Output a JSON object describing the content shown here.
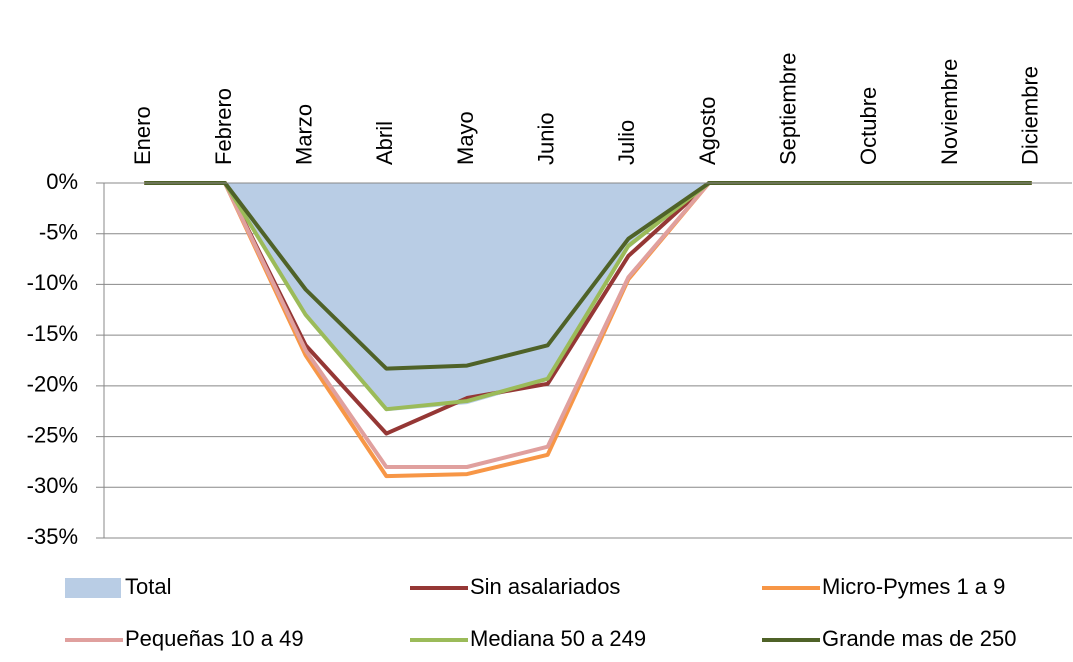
{
  "chart_data": {
    "type": "line",
    "categories": [
      "Enero",
      "Febrero",
      "Marzo",
      "Abril",
      "Mayo",
      "Junio",
      "Julio",
      "Agosto",
      "Septiembre",
      "Octubre",
      "Noviembre",
      "Diciembre"
    ],
    "series": [
      {
        "name": "Total",
        "color": "#b9cde5",
        "kind": "area",
        "values": [
          0,
          0,
          -13,
          -22.5,
          -21.8,
          -19.5,
          -6.5,
          0,
          0,
          0,
          0,
          0
        ]
      },
      {
        "name": "Sin asalariados",
        "color": "#953735",
        "values": [
          0,
          0,
          -16,
          -24.7,
          -21.2,
          -19.8,
          -7.2,
          0,
          0,
          0,
          0,
          0
        ]
      },
      {
        "name": "Micro-Pymes 1 a 9",
        "color": "#f79646",
        "values": [
          0,
          0,
          -17,
          -28.9,
          -28.7,
          -26.8,
          -9.5,
          0,
          0,
          0,
          0,
          0
        ]
      },
      {
        "name": "Pequeñas 10 a 49",
        "color": "#e0a09e",
        "values": [
          0,
          0,
          -16.5,
          -28,
          -28,
          -26,
          -9.3,
          0,
          0,
          0,
          0,
          0
        ]
      },
      {
        "name": "Mediana 50 a 249",
        "color": "#9bbb59",
        "values": [
          0,
          0,
          -13,
          -22.3,
          -21.5,
          -19.3,
          -6.2,
          0,
          0,
          0,
          0,
          0
        ]
      },
      {
        "name": "Grande mas de 250",
        "color": "#4f6228",
        "values": [
          0,
          0,
          -10.5,
          -18.3,
          -18,
          -16,
          -5.5,
          0,
          0,
          0,
          0,
          0
        ]
      }
    ],
    "ylim": [
      -35,
      0
    ],
    "yticks": [
      {
        "value": 0,
        "label": "0%"
      },
      {
        "value": -5,
        "label": "-5%"
      },
      {
        "value": -10,
        "label": "-10%"
      },
      {
        "value": -15,
        "label": "-15%"
      },
      {
        "value": -20,
        "label": "-20%"
      },
      {
        "value": -25,
        "label": "-25%"
      },
      {
        "value": -30,
        "label": "-30%"
      },
      {
        "value": -35,
        "label": "-35%"
      }
    ],
    "grid": true
  }
}
